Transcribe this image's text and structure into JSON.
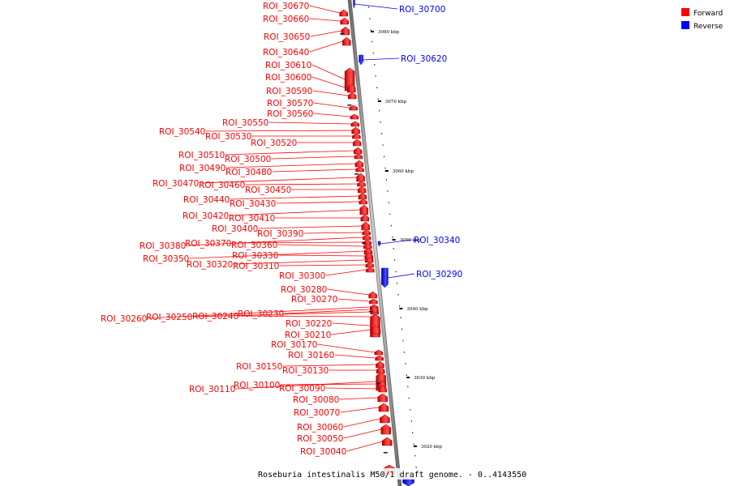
{
  "caption": "Roseburia intestinalis M50/1 draft genome. - 0..4143550",
  "legend": [
    {
      "label": "Forward",
      "color": "#ff0000"
    },
    {
      "label": "Reverse",
      "color": "#0000ff"
    }
  ],
  "colors": {
    "forward": "#ff0000",
    "reverse": "#0000ff",
    "axis": "#888888"
  },
  "ticks": [
    "3080 kbp",
    "3070 kbp",
    "3060 kbp",
    "3050 kbp",
    "3040 kbp",
    "3030 kbp",
    "3020 kbp"
  ],
  "features": [
    {
      "name": "ROI_30700",
      "strand": "reverse"
    },
    {
      "name": "ROI_30670",
      "strand": "forward"
    },
    {
      "name": "ROI_30660",
      "strand": "forward"
    },
    {
      "name": "ROI_30650",
      "strand": "forward"
    },
    {
      "name": "ROI_30640",
      "strand": "forward"
    },
    {
      "name": "ROI_30620",
      "strand": "reverse"
    },
    {
      "name": "ROI_30610",
      "strand": "forward"
    },
    {
      "name": "ROI_30600",
      "strand": "forward"
    },
    {
      "name": "ROI_30590",
      "strand": "forward"
    },
    {
      "name": "ROI_30570",
      "strand": "forward"
    },
    {
      "name": "ROI_30560",
      "strand": "forward"
    },
    {
      "name": "ROI_30550",
      "strand": "forward"
    },
    {
      "name": "ROI_30540",
      "strand": "forward"
    },
    {
      "name": "ROI_30530",
      "strand": "forward"
    },
    {
      "name": "ROI_30520",
      "strand": "forward"
    },
    {
      "name": "ROI_30510",
      "strand": "forward"
    },
    {
      "name": "ROI_30500",
      "strand": "forward"
    },
    {
      "name": "ROI_30490",
      "strand": "forward"
    },
    {
      "name": "ROI_30480",
      "strand": "forward"
    },
    {
      "name": "ROI_30470",
      "strand": "forward"
    },
    {
      "name": "ROI_30460",
      "strand": "forward"
    },
    {
      "name": "ROI_30450",
      "strand": "forward"
    },
    {
      "name": "ROI_30440",
      "strand": "forward"
    },
    {
      "name": "ROI_30430",
      "strand": "forward"
    },
    {
      "name": "ROI_30420",
      "strand": "forward"
    },
    {
      "name": "ROI_30410",
      "strand": "forward"
    },
    {
      "name": "ROI_30400",
      "strand": "forward"
    },
    {
      "name": "ROI_30390",
      "strand": "forward"
    },
    {
      "name": "ROI_30380",
      "strand": "forward"
    },
    {
      "name": "ROI_30370",
      "strand": "forward"
    },
    {
      "name": "ROI_30360",
      "strand": "forward"
    },
    {
      "name": "ROI_30350",
      "strand": "forward"
    },
    {
      "name": "ROI_30340",
      "strand": "reverse"
    },
    {
      "name": "ROI_30330",
      "strand": "forward"
    },
    {
      "name": "ROI_30320",
      "strand": "forward"
    },
    {
      "name": "ROI_30310",
      "strand": "forward"
    },
    {
      "name": "ROI_30300",
      "strand": "forward"
    },
    {
      "name": "ROI_30290",
      "strand": "reverse"
    },
    {
      "name": "ROI_30280",
      "strand": "forward"
    },
    {
      "name": "ROI_30270",
      "strand": "forward"
    },
    {
      "name": "ROI_30260",
      "strand": "forward"
    },
    {
      "name": "ROI_30250",
      "strand": "forward"
    },
    {
      "name": "ROI_30240",
      "strand": "forward"
    },
    {
      "name": "ROI_30230",
      "strand": "forward"
    },
    {
      "name": "ROI_30220",
      "strand": "forward"
    },
    {
      "name": "ROI_30210",
      "strand": "forward"
    },
    {
      "name": "ROI_30170",
      "strand": "forward"
    },
    {
      "name": "ROI_30160",
      "strand": "forward"
    },
    {
      "name": "ROI_30150",
      "strand": "forward"
    },
    {
      "name": "ROI_30130",
      "strand": "forward"
    },
    {
      "name": "ROI_30110",
      "strand": "forward"
    },
    {
      "name": "ROI_30100",
      "strand": "forward"
    },
    {
      "name": "ROI_30090",
      "strand": "forward"
    },
    {
      "name": "ROI_30080",
      "strand": "forward"
    },
    {
      "name": "ROI_30070",
      "strand": "forward"
    },
    {
      "name": "ROI_30060",
      "strand": "forward"
    },
    {
      "name": "ROI_30050",
      "strand": "forward"
    },
    {
      "name": "ROI_30040",
      "strand": "forward"
    }
  ]
}
